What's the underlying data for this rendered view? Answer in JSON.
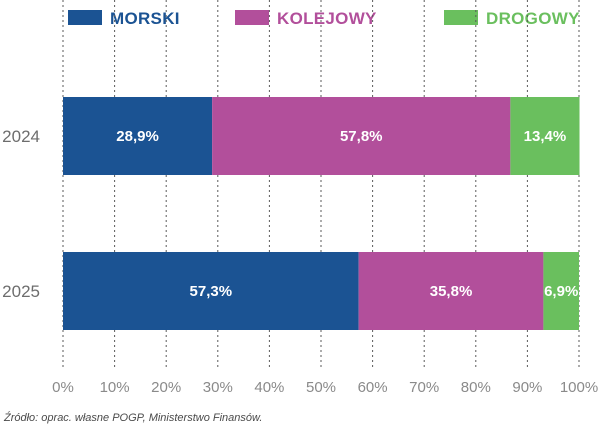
{
  "chart_data": {
    "type": "bar",
    "orientation": "horizontal",
    "stacked": true,
    "categories": [
      "2024",
      "2025"
    ],
    "series": [
      {
        "name": "MORSKI",
        "color": "#1b5393",
        "values": [
          28.9,
          57.3
        ],
        "labels": [
          "28,9%",
          "57,3%"
        ]
      },
      {
        "name": "KOLEJOWY",
        "color": "#b24f9b",
        "values": [
          57.8,
          35.8
        ],
        "labels": [
          "57,8%",
          "35,8%"
        ]
      },
      {
        "name": "DROGOWY",
        "color": "#6abf5e",
        "values": [
          13.4,
          6.9
        ],
        "labels": [
          "13,4%",
          "6,9%"
        ]
      }
    ],
    "x_ticks": [
      "0%",
      "10%",
      "20%",
      "30%",
      "40%",
      "50%",
      "60%",
      "70%",
      "80%",
      "90%",
      "100%"
    ],
    "xlim": [
      0,
      100
    ],
    "grid": "vertical dotted",
    "legend_position": "top"
  },
  "source_note": "Źródło: oprac. własne POGP, Ministerstwo Finansów."
}
